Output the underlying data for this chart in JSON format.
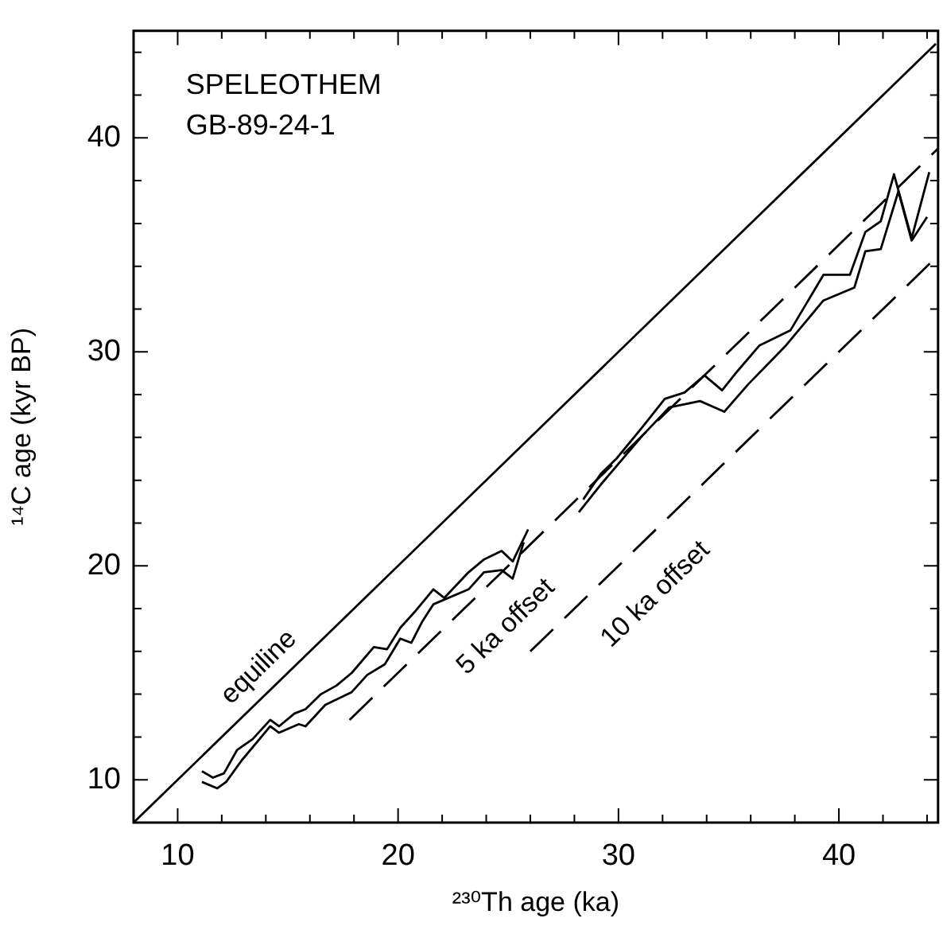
{
  "chart_data": {
    "type": "line",
    "xlabel": "²³⁰Th age (ka)",
    "ylabel": "¹⁴C age (kyr BP)",
    "xlim": [
      8,
      44.5
    ],
    "ylim": [
      8,
      45
    ],
    "xticks": [
      {
        "value": 8,
        "label": null
      },
      10,
      {
        "value": 12,
        "label": null
      },
      {
        "value": 14,
        "label": null
      },
      {
        "value": 16,
        "label": null
      },
      {
        "value": 18,
        "label": null
      },
      20,
      {
        "value": 22,
        "label": null
      },
      {
        "value": 24,
        "label": null
      },
      {
        "value": 26,
        "label": null
      },
      {
        "value": 28,
        "label": null
      },
      30,
      {
        "value": 32,
        "label": null
      },
      {
        "value": 34,
        "label": null
      },
      {
        "value": 36,
        "label": null
      },
      {
        "value": 38,
        "label": null
      },
      40,
      {
        "value": 42,
        "label": null
      },
      {
        "value": 44,
        "label": null
      }
    ],
    "yticks": [
      {
        "value": 8,
        "label": null
      },
      10,
      {
        "value": 12,
        "label": null
      },
      {
        "value": 14,
        "label": null
      },
      {
        "value": 16,
        "label": null
      },
      {
        "value": 18,
        "label": null
      },
      20,
      {
        "value": 22,
        "label": null
      },
      {
        "value": 24,
        "label": null
      },
      {
        "value": 26,
        "label": null
      },
      {
        "value": 28,
        "label": null
      },
      30,
      {
        "value": 32,
        "label": null
      },
      {
        "value": 34,
        "label": null
      },
      {
        "value": 36,
        "label": null
      },
      {
        "value": 38,
        "label": null
      },
      40,
      {
        "value": 42,
        "label": null
      },
      {
        "value": 44,
        "label": null
      }
    ],
    "grid": false,
    "legend": false,
    "marker": "none",
    "series": [
      {
        "color": "#000000",
        "line_style": "solid",
        "x": [
          8,
          44.4
        ],
        "values": [
          8,
          44.4
        ]
      },
      {
        "color": "#000000",
        "line_style": "dashed",
        "x": [
          17.8,
          44.5
        ],
        "values": [
          12.8,
          39.5
        ]
      },
      {
        "color": "#000000",
        "line_style": "dashed",
        "x": [
          26,
          44.5
        ],
        "values": [
          16,
          34.5
        ]
      },
      {
        "color": "#000000",
        "line_style": "solid",
        "x": [
          11.1,
          11.6,
          12.1,
          12.7,
          13.4,
          14.2,
          14.6,
          15.3,
          15.8,
          16.5,
          17.2,
          17.9,
          18.9,
          19.5,
          20.1,
          20.8,
          21.6,
          22.1,
          23.2,
          23.9,
          24.7,
          25.2,
          25.9,
          27,
          28.4,
          29.2,
          29.9,
          31.1,
          32.1,
          33.0,
          33.9,
          34.7,
          35.4,
          36.4,
          37.8,
          39.3,
          40.5,
          41.2,
          41.9,
          42.5,
          43.3,
          44.1
        ],
        "values": [
          10.4,
          10.1,
          10.3,
          11.4,
          11.9,
          12.8,
          12.5,
          13.1,
          13.3,
          14.0,
          14.4,
          15.0,
          16.2,
          16.1,
          17.1,
          17.9,
          18.9,
          18.5,
          19.7,
          20.3,
          20.7,
          20.2,
          21.7,
          null,
          23.1,
          24.3,
          25.0,
          26.5,
          27.8,
          28.1,
          28.9,
          28.2,
          29.1,
          30.3,
          31.0,
          33.6,
          33.6,
          35.6,
          36.1,
          38.3,
          35.3,
          38.4
        ]
      },
      {
        "color": "#000000",
        "line_style": "solid",
        "x": [
          11.1,
          11.8,
          12.2,
          12.9,
          14.2,
          14.6,
          15.5,
          15.8,
          16.7,
          17.9,
          18.6,
          19.4,
          20.1,
          20.6,
          21.1,
          21.6,
          23.2,
          23.9,
          24.7,
          25.2,
          25.7,
          27,
          28.2,
          29.2,
          31.1,
          32.3,
          33.7,
          34.8,
          35.9,
          37.6,
          39.3,
          40.7,
          41.2,
          41.9,
          42.7,
          43.3,
          44.0
        ],
        "values": [
          9.9,
          9.6,
          9.9,
          10.9,
          12.5,
          12.2,
          12.6,
          12.5,
          13.5,
          14.1,
          14.9,
          15.4,
          16.6,
          16.4,
          17.4,
          18.2,
          18.9,
          19.7,
          19.8,
          19.4,
          21.1,
          null,
          22.5,
          23.8,
          26.1,
          27.4,
          27.7,
          27.2,
          28.5,
          30.3,
          32.4,
          33.0,
          34.7,
          34.8,
          37.5,
          35.2,
          36.3
        ]
      }
    ],
    "annotations": [
      "SPELEOTHEM",
      "GB-89-24-1",
      "equiline",
      "5 ka offset",
      "10 ka offset"
    ]
  }
}
